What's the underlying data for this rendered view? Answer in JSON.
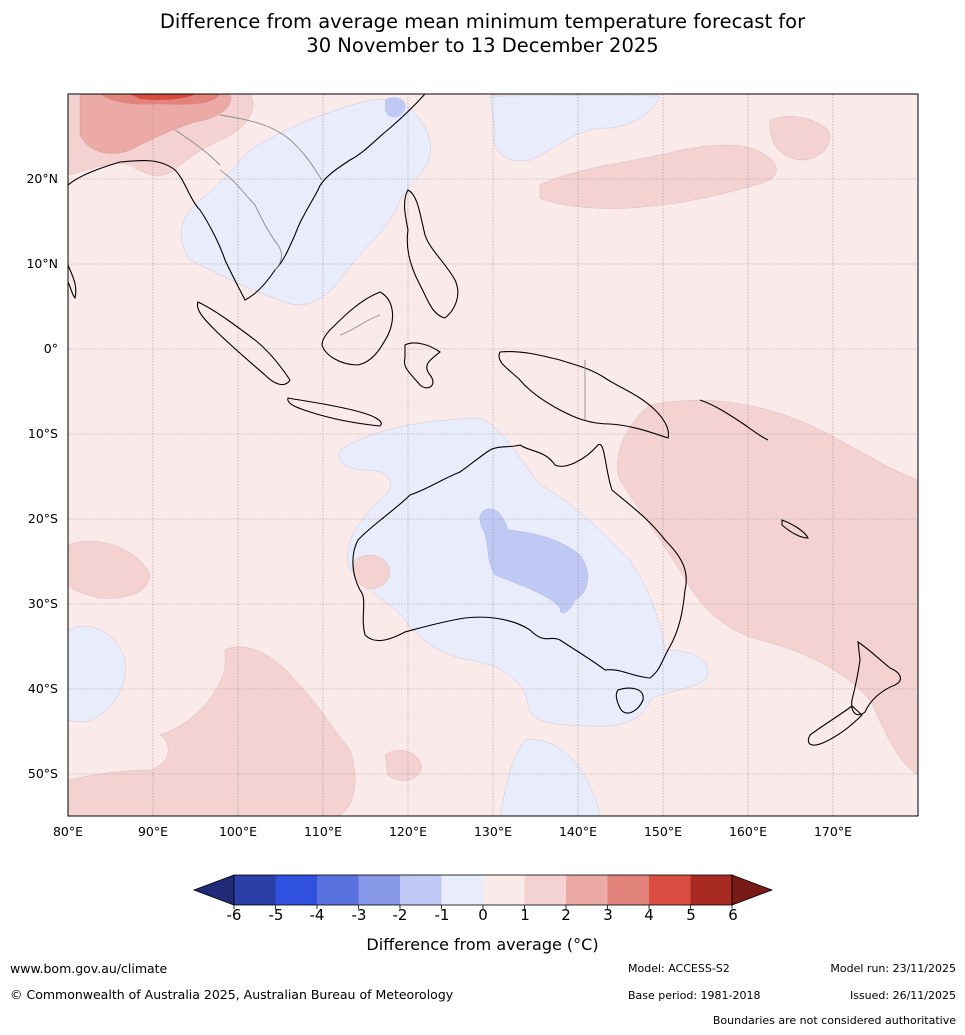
{
  "title": {
    "line1": "Difference from average mean minimum temperature forecast for",
    "line2": "30 November to 13 December 2025"
  },
  "map": {
    "lat_labels": [
      "20°N",
      "10°N",
      "0°",
      "10°S",
      "20°S",
      "30°S",
      "40°S",
      "50°S"
    ],
    "lon_labels": [
      "80°E",
      "90°E",
      "100°E",
      "110°E",
      "120°E",
      "130°E",
      "140°E",
      "150°E",
      "160°E",
      "170°E"
    ],
    "lon_range_deg": [
      80,
      180
    ],
    "lat_range_deg": [
      -55,
      30
    ],
    "regions": [
      "Australia",
      "Indonesia",
      "Papua New Guinea",
      "New Zealand",
      "Philippines",
      "Southeast Asia",
      "Western Pacific",
      "Southern Ocean",
      "Indian Ocean"
    ]
  },
  "colorbar": {
    "ticks": [
      "-6",
      "-5",
      "-4",
      "-3",
      "-2",
      "-1",
      "0",
      "1",
      "2",
      "3",
      "4",
      "5",
      "6"
    ],
    "colors": [
      "#2a3fa8",
      "#3050e0",
      "#5a72e0",
      "#8898e8",
      "#c0c8f4",
      "#e8ecfb",
      "#fbeaea",
      "#f4d2d2",
      "#ebaaa6",
      "#e3847c",
      "#d94c40",
      "#a82a22"
    ],
    "low_extend_color": "#1f2a78",
    "high_extend_color": "#7a1a16",
    "title": "Difference from average (°C)"
  },
  "footer": {
    "website": "www.bom.gov.au/climate",
    "copyright": "© Commonwealth of Australia 2025, Australian Bureau of Meteorology",
    "model": "Model: ACCESS-S2",
    "base_period": "Base period: 1981-2018",
    "model_run": "Model run: 23/11/2025",
    "issued": "Issued: 26/11/2025",
    "disclaimer": "Boundaries are not considered authoritative"
  }
}
